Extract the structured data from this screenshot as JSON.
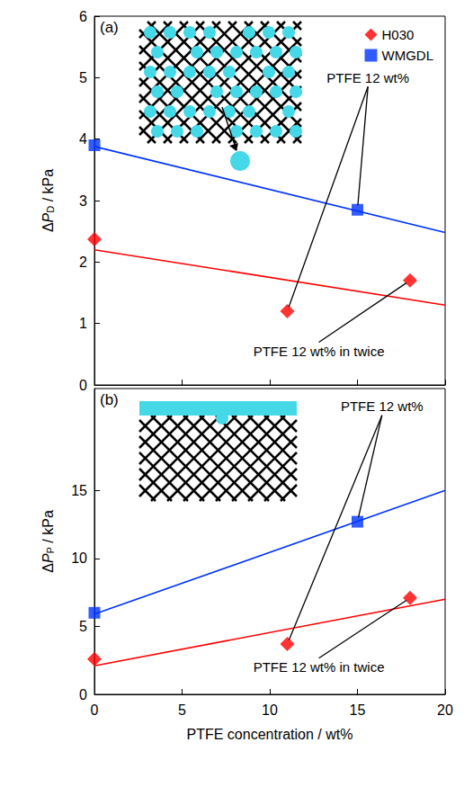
{
  "chart_data": [
    {
      "type": "scatter",
      "title": "(a)",
      "ylabel": [
        {
          "text": "Δ"
        },
        {
          "text": "P",
          "style": "italic"
        },
        {
          "text": "D",
          "style": "subscript"
        },
        {
          "text": " / kPa"
        }
      ],
      "xlim": [
        0,
        20
      ],
      "xticks": [
        0,
        5,
        10,
        15,
        20
      ],
      "ylim": [
        0,
        6
      ],
      "yticks": [
        0,
        1,
        2,
        3,
        4,
        5,
        6
      ],
      "tick_labels": "y",
      "legend": "upper right",
      "series": [
        {
          "name": "H030",
          "color": "#ff0000",
          "marker": "diamond",
          "x": [
            0,
            11,
            18
          ],
          "values": [
            2.37,
            1.2,
            1.7
          ],
          "fit": {
            "x": [
              0,
              20
            ],
            "values": [
              2.2,
              1.3
            ]
          }
        },
        {
          "name": "WMGDL",
          "color": "#0033ff",
          "marker": "square",
          "x": [
            0,
            15
          ],
          "values": [
            3.9,
            2.85
          ],
          "fit": {
            "x": [
              0,
              20
            ],
            "values": [
              3.88,
              2.48
            ]
          }
        }
      ],
      "annotations": [
        {
          "text": "PTFE 12 wt%",
          "x": 15.6,
          "y": 5.0,
          "points": [
            {
              "series": "WMGDL",
              "index": 1
            },
            {
              "series": "H030",
              "index": 1
            }
          ]
        },
        {
          "text": "PTFE 12 wt% in twice",
          "x": 12.8,
          "y": 0.55,
          "points": [
            {
              "series": "H030",
              "index": 2
            }
          ]
        }
      ]
    },
    {
      "type": "scatter",
      "title": "(b)",
      "xlabel": "PTFE concentration / wt%",
      "ylabel": [
        {
          "text": "Δ"
        },
        {
          "text": "P",
          "style": "italic"
        },
        {
          "text": "P",
          "style": "subscript"
        },
        {
          "text": " / kPa"
        }
      ],
      "xlim": [
        0,
        20
      ],
      "xticks": [
        0,
        5,
        10,
        15,
        20
      ],
      "ylim": [
        0,
        22.5
      ],
      "yticks": [
        0,
        5,
        10,
        15
      ],
      "series": [
        {
          "name": "H030",
          "color": "#ff0000",
          "marker": "diamond",
          "x": [
            0,
            11,
            18
          ],
          "values": [
            2.6,
            3.7,
            7.1
          ],
          "fit": {
            "x": [
              0,
              20
            ],
            "values": [
              2.1,
              7.0
            ]
          }
        },
        {
          "name": "WMGDL",
          "color": "#0033ff",
          "marker": "square",
          "x": [
            0,
            15
          ],
          "values": [
            6.0,
            12.7
          ],
          "fit": {
            "x": [
              0,
              20
            ],
            "values": [
              5.9,
              15.0
            ]
          }
        }
      ],
      "annotations": [
        {
          "text": "PTFE 12 wt%",
          "x": 16.4,
          "y": 21.2,
          "points": [
            {
              "series": "WMGDL",
              "index": 1
            },
            {
              "series": "H030",
              "index": 1
            }
          ]
        },
        {
          "text": "PTFE 12 wt% in twice",
          "x": 12.8,
          "y": 2.0,
          "points": [
            {
              "series": "H030",
              "index": 2
            }
          ]
        }
      ]
    }
  ]
}
